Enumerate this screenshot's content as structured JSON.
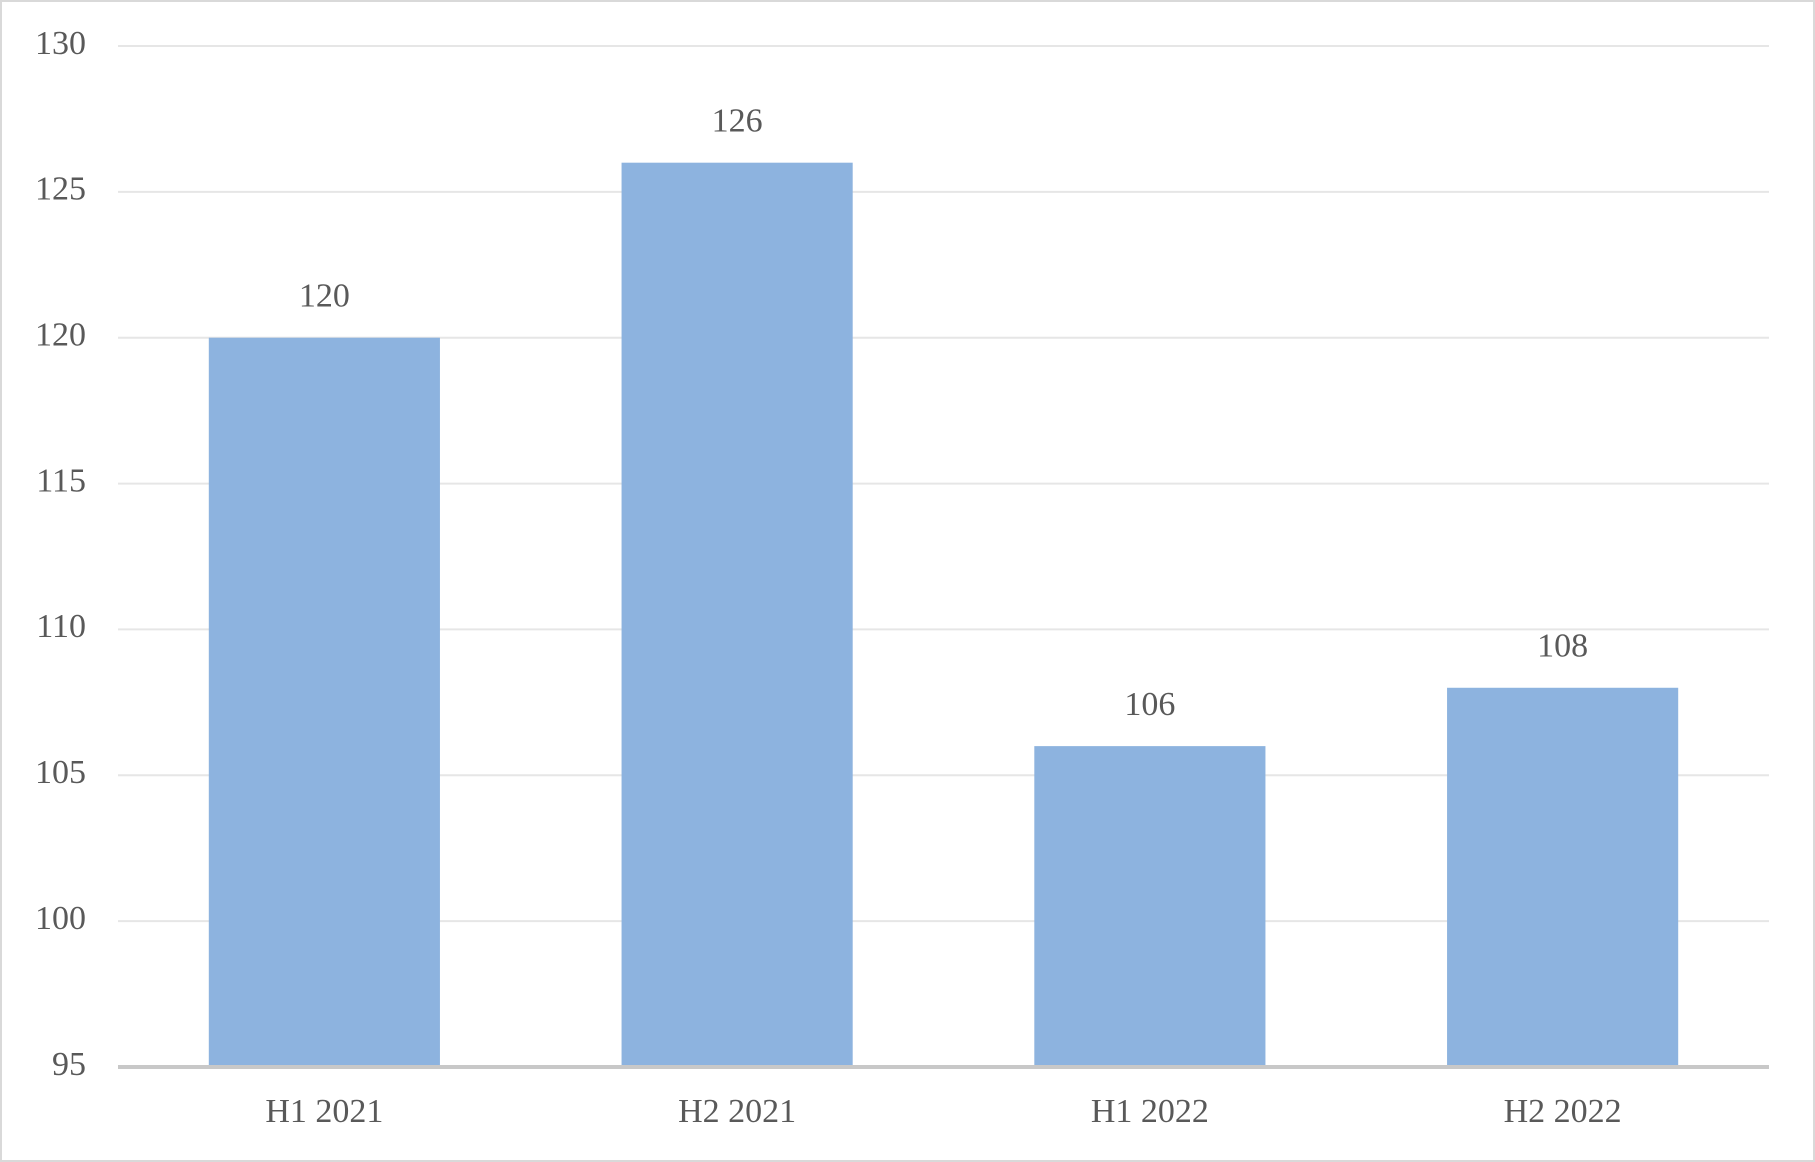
{
  "chart_data": {
    "type": "bar",
    "categories": [
      "H1 2021",
      "H2 2021",
      "H1 2022",
      "H2 2022"
    ],
    "values": [
      120,
      126,
      106,
      108
    ],
    "color": "#8db3df",
    "ylim": [
      95,
      130
    ],
    "yticks": [
      95,
      100,
      105,
      110,
      115,
      120,
      125,
      130
    ],
    "grid": true
  }
}
